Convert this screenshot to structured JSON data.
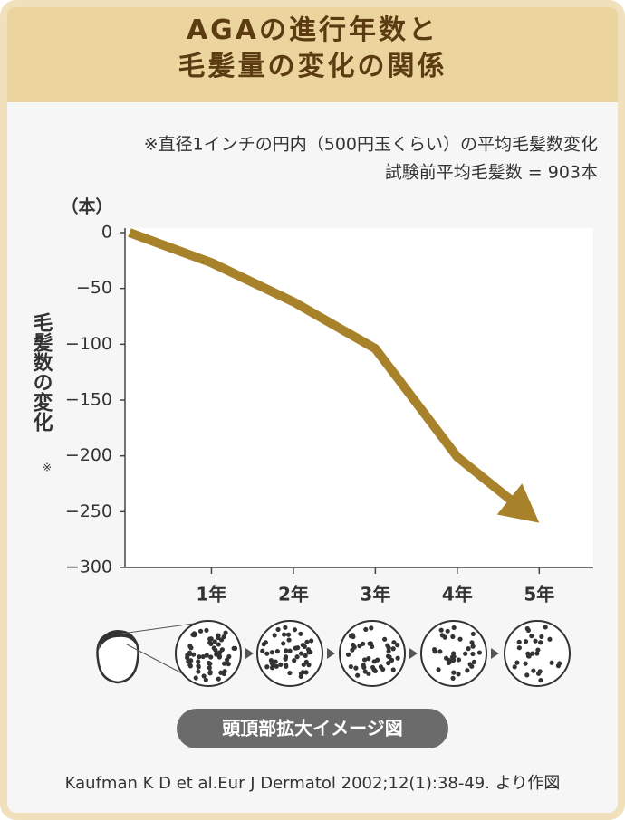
{
  "chart_data": {
    "type": "line",
    "title": "AGAの進行年数と\n毛髪量の変化の関係",
    "notes": [
      "※直径1インチの円内（500円玉くらい）の平均毛髪数変化",
      "試験前平均毛髪数 = 903本"
    ],
    "y_unit": "（本）",
    "ylabel": "毛髪数の変化",
    "ylabel_note": "※",
    "x": [
      0,
      1,
      2,
      3,
      4,
      5
    ],
    "values": [
      0,
      -27,
      -62,
      -104,
      -201,
      -260
    ],
    "color": "#a8822a",
    "xlim": [
      0,
      5.66
    ],
    "xticks": [
      {
        "value": 1,
        "label": "1年"
      },
      {
        "value": 2,
        "label": "2年"
      },
      {
        "value": 3,
        "label": "3年"
      },
      {
        "value": 4,
        "label": "4年"
      },
      {
        "value": 5,
        "label": "5年"
      }
    ],
    "ylim": [
      -300,
      0
    ],
    "yticks": [
      0,
      {
        "value": -50,
        "label": "−50"
      },
      {
        "value": -100,
        "label": "−100"
      },
      {
        "value": -150,
        "label": "−150"
      },
      {
        "value": -200,
        "label": "−200"
      },
      {
        "value": -250,
        "label": "−250"
      },
      {
        "value": -300,
        "label": "−300"
      }
    ],
    "grid": false
  },
  "illustration": {
    "label": "頭頂部拡大イメージ図"
  },
  "source": "Kaufman K D et al.Eur J Dermatol 2002;12(1):38-49. より作図"
}
